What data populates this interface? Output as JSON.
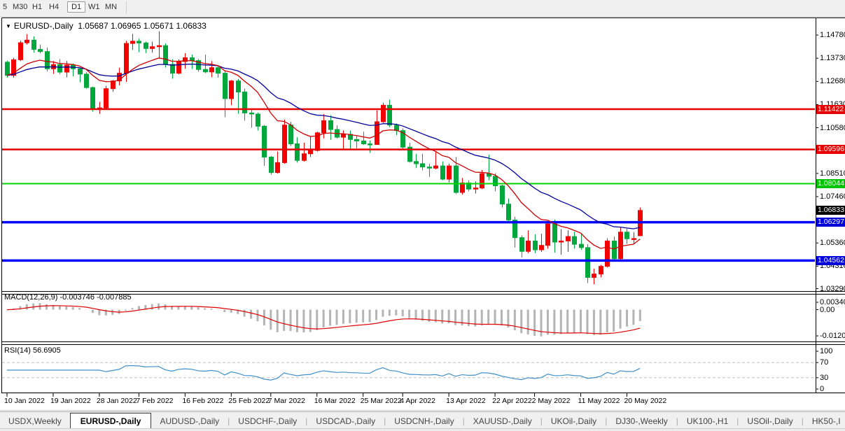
{
  "toolbar": {
    "timeframes": [
      "5",
      "M30",
      "H1",
      "H4",
      "D1",
      "W1",
      "MN"
    ],
    "active_timeframe": "D1"
  },
  "header": {
    "symbol": "EURUSD-,Daily",
    "ohlc": "1.05687 1.06965 1.05671 1.06833"
  },
  "indicator_labels": {
    "macd": "MACD(12,26,9) -0.003746 -0.007885",
    "rsi": "RSI(14) 56.6905"
  },
  "chart_data": {
    "type": "candlestick",
    "symbol": "EURUSD-,Daily",
    "last_bar": {
      "open": 1.05687,
      "high": 1.06965,
      "low": 1.05671,
      "close": 1.06833
    },
    "bull_color": "#f40000",
    "bear_color": "#00a73c",
    "y_axis_ticks": [
      1.1478,
      1.1373,
      1.1268,
      1.1163,
      1.1058,
      1.0851,
      1.0746,
      1.0536,
      1.0431,
      1.0329
    ],
    "x_axis_labels": [
      "10 Jan 2022",
      "19 Jan 2022",
      "28 Jan 2022",
      "7 Feb 2022",
      "16 Feb 2022",
      "25 Feb 2022",
      "7 Mar 2022",
      "16 Mar 2022",
      "25 Mar 2022",
      "4 Apr 2022",
      "13 Apr 2022",
      "22 Apr 2022",
      "2 May 2022",
      "11 May 2022",
      "20 May 2022"
    ],
    "x_label_bar_indices": [
      0,
      7,
      14,
      20,
      27,
      34,
      40,
      47,
      54,
      60,
      67,
      74,
      80,
      87,
      94
    ],
    "horizontal_levels": [
      {
        "price": 1.11422,
        "color": "#e60000",
        "width": 2.5
      },
      {
        "price": 1.09596,
        "color": "#e60000",
        "width": 2.5
      },
      {
        "price": 1.08044,
        "color": "#00d300",
        "width": 2
      },
      {
        "price": 1.06297,
        "color": "#0000ff",
        "width": 3.5
      },
      {
        "price": 1.04562,
        "color": "#0000ff",
        "width": 3.5
      }
    ],
    "price_tags": [
      {
        "label": "1.11422",
        "bg": "#e60000"
      },
      {
        "label": "1.09596",
        "bg": "#e60000"
      },
      {
        "label": "1.08044",
        "bg": "#00c400"
      },
      {
        "label": "1.06833",
        "bg": "#000000"
      },
      {
        "label": "1.06297",
        "bg": "#0000dd"
      },
      {
        "label": "1.04562",
        "bg": "#0000dd"
      }
    ],
    "moving_averages": [
      {
        "period": 12,
        "color": "#cc0000"
      },
      {
        "period": 26,
        "color": "#000099"
      }
    ],
    "indicators": {
      "macd": {
        "name": "MACD",
        "params": [
          12,
          26,
          9
        ],
        "main_value": -0.003746,
        "signal_value": -0.007885,
        "axis_labels": [
          "0.003408",
          "0.00",
          "-0.012058"
        ],
        "axis_values": [
          0.003408,
          0,
          -0.012058
        ],
        "histogram_color": "#b4b4b4",
        "signal_color": "#e00000"
      },
      "rsi": {
        "name": "RSI",
        "period": 14,
        "value": 56.6905,
        "levels": [
          100,
          70,
          30,
          0
        ],
        "dashed_levels": [
          70,
          30
        ],
        "line_color": "#3f8fca"
      }
    },
    "candles": [
      [
        1.1355,
        1.1362,
        1.1285,
        1.1295
      ],
      [
        1.1295,
        1.1375,
        1.1285,
        1.1366
      ],
      [
        1.1366,
        1.1453,
        1.136,
        1.1443
      ],
      [
        1.1443,
        1.1482,
        1.1435,
        1.1455
      ],
      [
        1.1455,
        1.1472,
        1.1398,
        1.1413
      ],
      [
        1.1413,
        1.1435,
        1.1395,
        1.1403
      ],
      [
        1.1403,
        1.1422,
        1.1313,
        1.1325
      ],
      [
        1.1325,
        1.136,
        1.1302,
        1.1344
      ],
      [
        1.1344,
        1.1369,
        1.13,
        1.131
      ],
      [
        1.131,
        1.136,
        1.1286,
        1.1342
      ],
      [
        1.1342,
        1.1349,
        1.1291,
        1.1325
      ],
      [
        1.1325,
        1.133,
        1.1264,
        1.1301
      ],
      [
        1.1301,
        1.131,
        1.1235,
        1.124
      ],
      [
        1.124,
        1.1244,
        1.1131,
        1.1145
      ],
      [
        1.1145,
        1.1175,
        1.1121,
        1.1148
      ],
      [
        1.1148,
        1.1248,
        1.114,
        1.1235
      ],
      [
        1.1235,
        1.1274,
        1.1221,
        1.127
      ],
      [
        1.127,
        1.133,
        1.125,
        1.1305
      ],
      [
        1.1305,
        1.1452,
        1.1266,
        1.144
      ],
      [
        1.144,
        1.1483,
        1.1411,
        1.145
      ],
      [
        1.145,
        1.1462,
        1.14,
        1.1442
      ],
      [
        1.1442,
        1.1448,
        1.1396,
        1.1417
      ],
      [
        1.1417,
        1.1448,
        1.1398,
        1.1425
      ],
      [
        1.1425,
        1.1495,
        1.1375,
        1.143
      ],
      [
        1.143,
        1.144,
        1.133,
        1.1345
      ],
      [
        1.1345,
        1.1368,
        1.128,
        1.1305
      ],
      [
        1.1305,
        1.1368,
        1.13,
        1.1358
      ],
      [
        1.1358,
        1.1396,
        1.1325,
        1.1375
      ],
      [
        1.1375,
        1.139,
        1.1324,
        1.1362
      ],
      [
        1.1362,
        1.137,
        1.1312,
        1.1322
      ],
      [
        1.1322,
        1.139,
        1.1305,
        1.1311
      ],
      [
        1.1311,
        1.136,
        1.1287,
        1.133
      ],
      [
        1.133,
        1.1342,
        1.1285,
        1.1305
      ],
      [
        1.1305,
        1.1315,
        1.1106,
        1.119
      ],
      [
        1.119,
        1.1274,
        1.116,
        1.127
      ],
      [
        1.127,
        1.1279,
        1.1121,
        1.122
      ],
      [
        1.122,
        1.1235,
        1.109,
        1.1125
      ],
      [
        1.1125,
        1.114,
        1.1058,
        1.112
      ],
      [
        1.112,
        1.1127,
        1.1045,
        1.1065
      ],
      [
        1.1065,
        1.107,
        1.0885,
        1.0925
      ],
      [
        1.0925,
        1.093,
        1.0845,
        1.0855
      ],
      [
        1.0855,
        1.095,
        1.085,
        1.09
      ],
      [
        1.09,
        1.1095,
        1.0895,
        1.107
      ],
      [
        1.107,
        1.1085,
        1.0975,
        1.0985
      ],
      [
        1.0985,
        1.1015,
        1.09,
        1.091
      ],
      [
        1.091,
        1.099,
        1.0905,
        1.094
      ],
      [
        1.094,
        1.102,
        1.0925,
        1.0955
      ],
      [
        1.0955,
        1.104,
        1.095,
        1.1035
      ],
      [
        1.1035,
        1.112,
        1.101,
        1.109
      ],
      [
        1.109,
        1.1115,
        1.1003,
        1.105
      ],
      [
        1.105,
        1.1069,
        1.101,
        1.1015
      ],
      [
        1.1015,
        1.1046,
        1.0962,
        1.1028
      ],
      [
        1.1028,
        1.1045,
        1.0963,
        1.1005
      ],
      [
        1.1005,
        1.1021,
        1.0965,
        1.0998
      ],
      [
        1.0998,
        1.104,
        1.098,
        1.0985
      ],
      [
        1.0985,
        1.1,
        1.0944,
        1.0982
      ],
      [
        1.0982,
        1.1137,
        1.098,
        1.1085
      ],
      [
        1.1085,
        1.1171,
        1.108,
        1.116
      ],
      [
        1.116,
        1.1185,
        1.106,
        1.107
      ],
      [
        1.107,
        1.1077,
        1.1025,
        1.1045
      ],
      [
        1.1045,
        1.1055,
        1.096,
        1.097
      ],
      [
        1.097,
        1.099,
        1.09,
        1.0905
      ],
      [
        1.0905,
        1.094,
        1.0875,
        1.0895
      ],
      [
        1.0895,
        1.094,
        1.0865,
        1.088
      ],
      [
        1.088,
        1.0895,
        1.0835,
        1.0875
      ],
      [
        1.0875,
        1.095,
        1.087,
        1.0885
      ],
      [
        1.0885,
        1.0905,
        1.082,
        1.0825
      ],
      [
        1.0825,
        1.0895,
        1.081,
        1.0885
      ],
      [
        1.0885,
        1.0925,
        1.0758,
        1.0765
      ],
      [
        1.0765,
        1.083,
        1.0755,
        1.0808
      ],
      [
        1.0808,
        1.082,
        1.077,
        1.078
      ],
      [
        1.078,
        1.0815,
        1.076,
        1.0785
      ],
      [
        1.0785,
        1.0867,
        1.078,
        1.085
      ],
      [
        1.085,
        1.0936,
        1.082,
        1.0838
      ],
      [
        1.0838,
        1.0852,
        1.077,
        1.0795
      ],
      [
        1.0795,
        1.08,
        1.0697,
        1.0712
      ],
      [
        1.0712,
        1.0738,
        1.0635,
        1.064
      ],
      [
        1.064,
        1.0655,
        1.0515,
        1.056
      ],
      [
        1.056,
        1.057,
        1.0471,
        1.0498
      ],
      [
        1.0498,
        1.0593,
        1.049,
        1.0545
      ],
      [
        1.0545,
        1.0575,
        1.049,
        1.0505
      ],
      [
        1.0505,
        1.0578,
        1.0495,
        1.0525
      ],
      [
        1.0525,
        1.063,
        1.051,
        1.0622
      ],
      [
        1.0622,
        1.0642,
        1.0492,
        1.054
      ],
      [
        1.054,
        1.0599,
        1.0483,
        1.0545
      ],
      [
        1.0545,
        1.0594,
        1.0495,
        1.0565
      ],
      [
        1.0565,
        1.0587,
        1.051,
        1.053
      ],
      [
        1.053,
        1.0579,
        1.0505,
        1.0515
      ],
      [
        1.0515,
        1.053,
        1.0354,
        1.038
      ],
      [
        1.038,
        1.042,
        1.0349,
        1.0395
      ],
      [
        1.0395,
        1.0437,
        1.038,
        1.043
      ],
      [
        1.043,
        1.0557,
        1.0425,
        1.0545
      ],
      [
        1.0545,
        1.0565,
        1.046,
        1.0465
      ],
      [
        1.0465,
        1.0607,
        1.046,
        1.0585
      ],
      [
        1.0585,
        1.06,
        1.0532,
        1.0555
      ],
      [
        1.0555,
        1.0585,
        1.0532,
        1.0556
      ],
      [
        1.05687,
        1.06965,
        1.05671,
        1.06833
      ]
    ]
  },
  "tabs": {
    "items": [
      {
        "label": "USDX,Weekly",
        "active": false
      },
      {
        "label": "EURUSD-,Daily",
        "active": true
      },
      {
        "label": "AUDUSD-,Daily",
        "active": false
      },
      {
        "label": "USDCHF-,Daily",
        "active": false
      },
      {
        "label": "USDCAD-,Daily",
        "active": false
      },
      {
        "label": "USDCNH-,Daily",
        "active": false
      },
      {
        "label": "XAUUSD-,Daily",
        "active": false
      },
      {
        "label": "UKOil-,Daily",
        "active": false
      },
      {
        "label": "DJ30-,Weekly",
        "active": false
      },
      {
        "label": "UK100-,H1",
        "active": false
      },
      {
        "label": "USOil-,Daily",
        "active": false
      },
      {
        "label": "HK50-,I",
        "active": false
      }
    ],
    "scroll_left": "◄",
    "scroll_right": "►"
  }
}
